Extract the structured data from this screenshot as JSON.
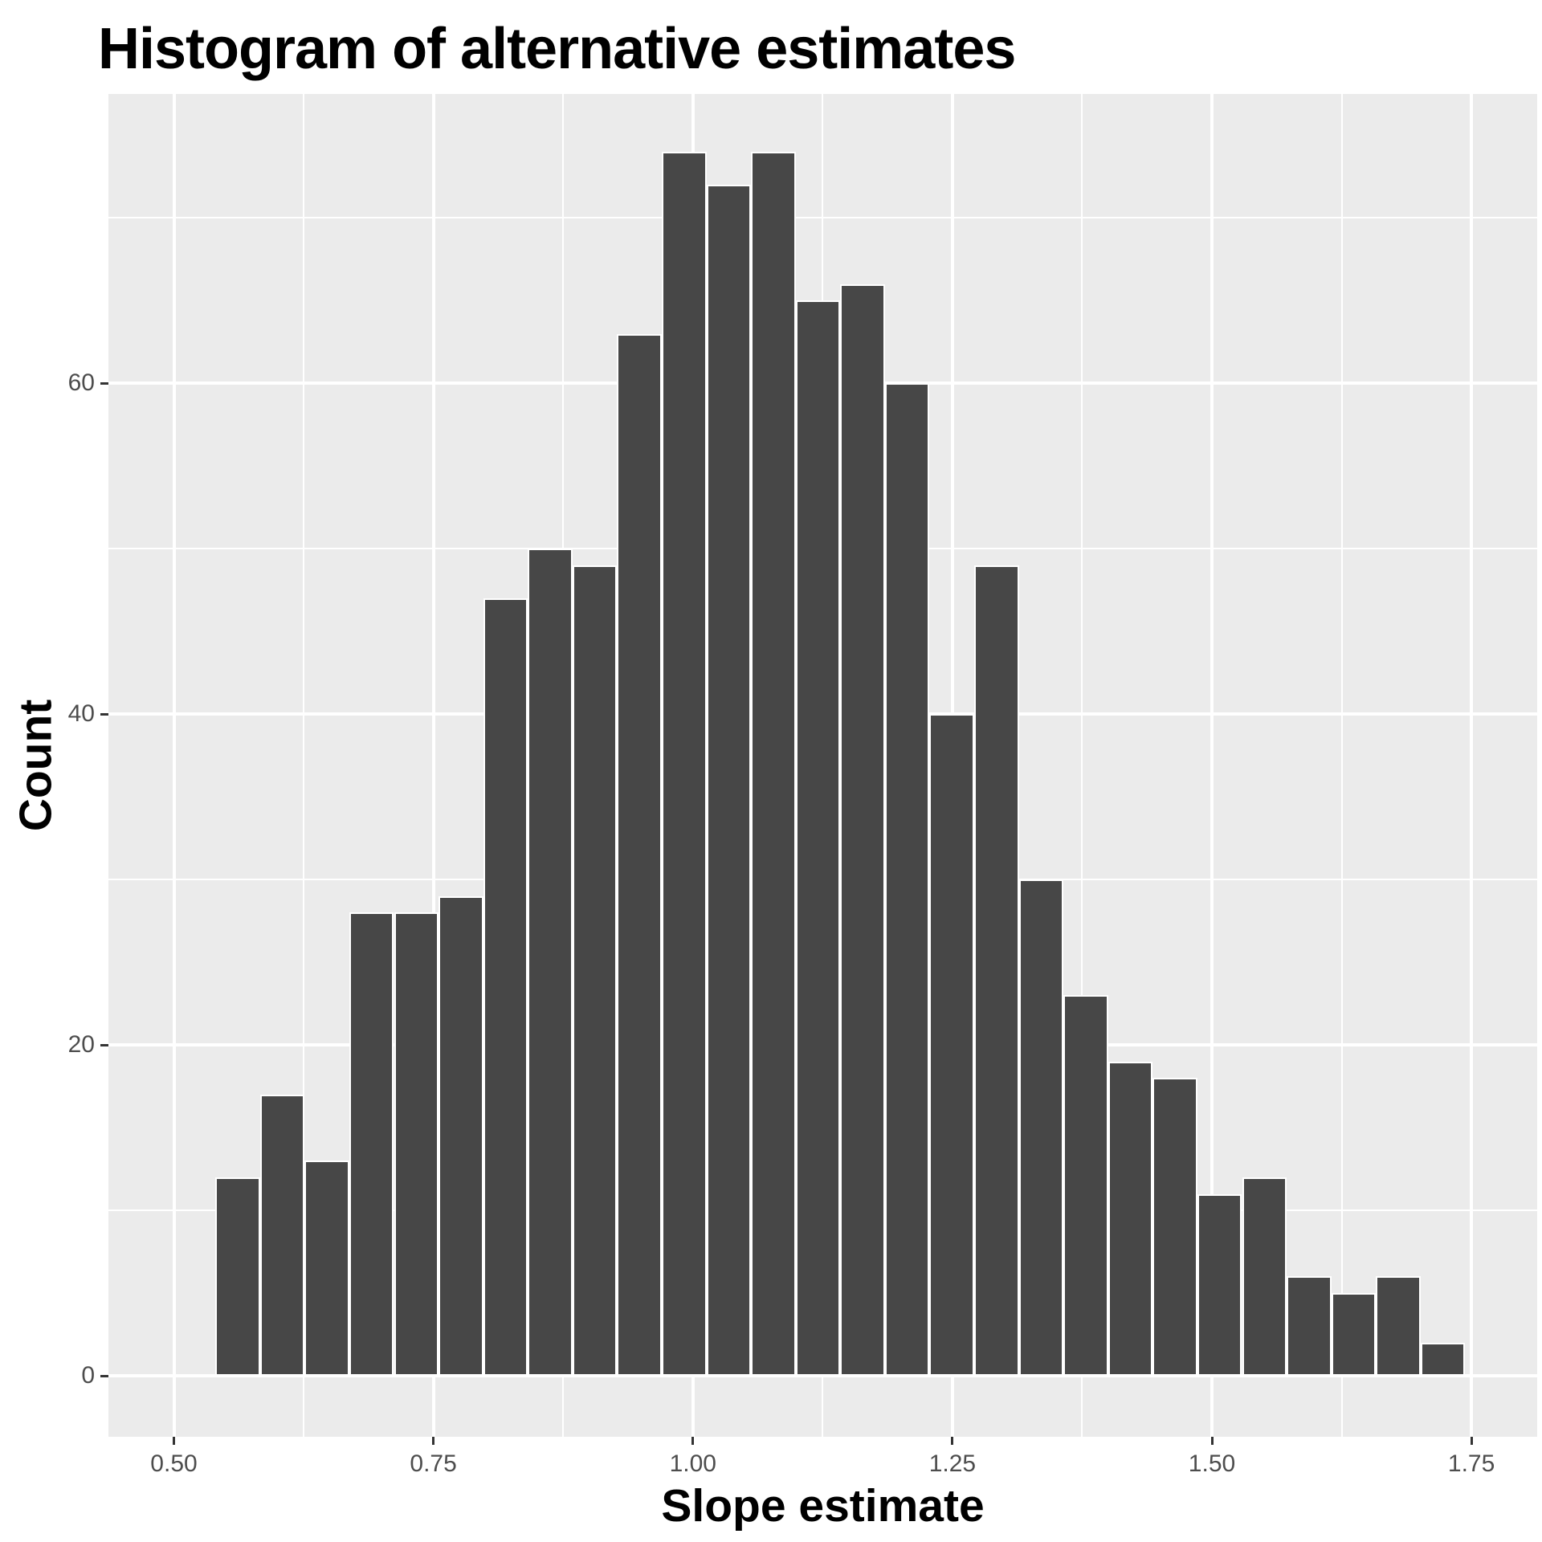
{
  "title": "Histogram of alternative estimates",
  "chart_data": {
    "type": "bar",
    "subtype": "histogram",
    "title": "Histogram of alternative estimates",
    "xlabel": "Slope estimate",
    "ylabel": "Count",
    "bin_start": 0.54,
    "bin_width": 0.043,
    "counts": [
      12,
      17,
      13,
      28,
      28,
      29,
      47,
      50,
      49,
      63,
      74,
      72,
      74,
      65,
      66,
      60,
      40,
      49,
      30,
      23,
      19,
      18,
      11,
      12,
      6,
      5,
      6,
      2
    ],
    "x_major_ticks": [
      0.5,
      0.75,
      1.0,
      1.25,
      1.5,
      1.75
    ],
    "x_tick_labels": [
      "0.50",
      "0.75",
      "1.00",
      "1.25",
      "1.50",
      "1.75"
    ],
    "x_minor_ticks": [
      0.625,
      0.875,
      1.125,
      1.375,
      1.625
    ],
    "y_major_ticks": [
      0,
      20,
      40,
      60
    ],
    "y_tick_labels": [
      "0",
      "20",
      "40",
      "60"
    ],
    "y_minor_ticks": [
      10,
      30,
      50,
      70
    ],
    "x_range": [
      0.437,
      1.814
    ],
    "y_range": [
      -3.7,
      77.6
    ],
    "grid": true,
    "legend": false,
    "colors": {
      "bar_fill": "#474747",
      "bar_border": "#ffffff",
      "panel_bg": "#ebebeb",
      "grid": "#ffffff",
      "tick_label": "#4d4d4d",
      "text": "#000000",
      "page_bg": "#ffffff"
    }
  }
}
